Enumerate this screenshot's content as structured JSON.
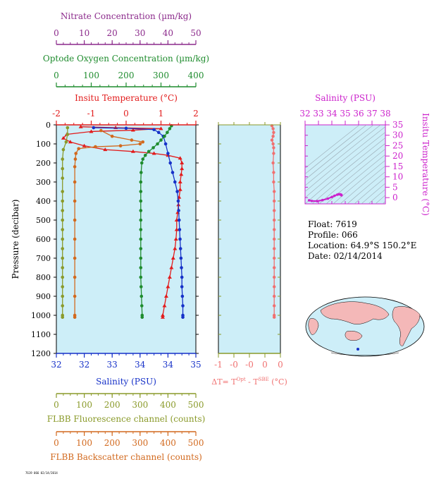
{
  "colors": {
    "nitrate": "#8b2a8b",
    "oxygen": "#1f8c2e",
    "temperature": "#e21b1b",
    "salinity": "#1631c8",
    "fluorescence": "#8a9a2a",
    "backscatter": "#d2691e",
    "delta_t": "#f07070",
    "ts_axes": "#cc22cc",
    "plot_bg": "#cdeef8",
    "axis": "#000000"
  },
  "info": {
    "float": "Float:  7619",
    "profile": "Profile:  066",
    "location": "Location:  64.9°S  150.2°E",
    "date": "Date:  02/14/2014"
  },
  "footer": "7619 066 02/14/2014",
  "chart_data": [
    {
      "type": "line",
      "name": "main-profile",
      "ylabel": "Pressure (decibar)",
      "ylim": [
        1200,
        0
      ],
      "yticks": [
        "0",
        "100",
        "200",
        "300",
        "400",
        "500",
        "600",
        "700",
        "800",
        "900",
        "1000",
        "1100",
        "1200"
      ],
      "axes": {
        "nitrate": {
          "label": "Nitrate Concentration (µm/kg)",
          "range": [
            0,
            50
          ],
          "ticks": [
            "0",
            "10",
            "20",
            "30",
            "40",
            "50"
          ]
        },
        "oxygen": {
          "label": "Optode Oxygen Concentration (µm/kg)",
          "range": [
            0,
            400
          ],
          "ticks": [
            "0",
            "100",
            "200",
            "300",
            "400"
          ]
        },
        "temperature": {
          "label": "Insitu Temperature (°C)",
          "range": [
            -2,
            2
          ],
          "ticks": [
            "-2",
            "-1",
            "0",
            "1",
            "2"
          ]
        },
        "salinity": {
          "label": "Salinity (PSU)",
          "range": [
            32,
            35
          ],
          "ticks": [
            "32",
            "32",
            "33",
            "34",
            "34",
            "35"
          ]
        },
        "fluorescence": {
          "label": "FLBB Fluorescence channel (counts)",
          "range": [
            0,
            500
          ],
          "ticks": [
            "0",
            "100",
            "200",
            "300",
            "400",
            "500"
          ]
        },
        "backscatter": {
          "label": "FLBB Backscatter channel (counts)",
          "range": [
            0,
            500
          ],
          "ticks": [
            "0",
            "100",
            "200",
            "300",
            "400",
            "500"
          ]
        }
      },
      "series": [
        {
          "key": "temperature",
          "points": [
            [
              -1.3,
              10
            ],
            [
              -0.3,
              15
            ],
            [
              1.0,
              20
            ],
            [
              0.2,
              28
            ],
            [
              -1.0,
              35
            ],
            [
              -1.7,
              50
            ],
            [
              -1.8,
              70
            ],
            [
              -1.6,
              90
            ],
            [
              -1.2,
              110
            ],
            [
              -0.6,
              130
            ],
            [
              0.2,
              140
            ],
            [
              0.8,
              150
            ],
            [
              1.2,
              160
            ],
            [
              1.55,
              175
            ],
            [
              1.6,
              200
            ],
            [
              1.6,
              230
            ],
            [
              1.58,
              260
            ],
            [
              1.55,
              300
            ],
            [
              1.55,
              340
            ],
            [
              1.52,
              380
            ],
            [
              1.5,
              420
            ],
            [
              1.48,
              460
            ],
            [
              1.45,
              500
            ],
            [
              1.45,
              550
            ],
            [
              1.43,
              600
            ],
            [
              1.4,
              650
            ],
            [
              1.35,
              700
            ],
            [
              1.3,
              750
            ],
            [
              1.25,
              800
            ],
            [
              1.2,
              850
            ],
            [
              1.15,
              900
            ],
            [
              1.1,
              950
            ],
            [
              1.05,
              1000
            ],
            [
              1.05,
              1010
            ]
          ]
        },
        {
          "key": "salinity",
          "points": [
            [
              32.8,
              15
            ],
            [
              33.5,
              18
            ],
            [
              34.1,
              25
            ],
            [
              34.2,
              40
            ],
            [
              34.3,
              60
            ],
            [
              34.35,
              100
            ],
            [
              34.4,
              150
            ],
            [
              34.45,
              200
            ],
            [
              34.5,
              250
            ],
            [
              34.55,
              300
            ],
            [
              34.6,
              350
            ],
            [
              34.62,
              400
            ],
            [
              34.63,
              450
            ],
            [
              34.64,
              500
            ],
            [
              34.65,
              550
            ],
            [
              34.66,
              600
            ],
            [
              34.67,
              650
            ],
            [
              34.68,
              700
            ],
            [
              34.69,
              750
            ],
            [
              34.7,
              800
            ],
            [
              34.7,
              850
            ],
            [
              34.71,
              900
            ],
            [
              34.72,
              950
            ],
            [
              34.72,
              1000
            ],
            [
              34.72,
              1010
            ]
          ]
        },
        {
          "key": "oxygen",
          "points": [
            [
              330,
              5
            ],
            [
              325,
              20
            ],
            [
              318,
              40
            ],
            [
              310,
              60
            ],
            [
              300,
              80
            ],
            [
              290,
              100
            ],
            [
              278,
              120
            ],
            [
              265,
              140
            ],
            [
              255,
              160
            ],
            [
              248,
              180
            ],
            [
              245,
              200
            ],
            [
              243,
              250
            ],
            [
              242,
              300
            ],
            [
              242,
              350
            ],
            [
              242,
              400
            ],
            [
              242,
              450
            ],
            [
              242,
              500
            ],
            [
              242,
              550
            ],
            [
              242,
              600
            ],
            [
              242,
              650
            ],
            [
              242,
              700
            ],
            [
              242,
              750
            ],
            [
              242,
              800
            ],
            [
              243,
              850
            ],
            [
              244,
              900
            ],
            [
              245,
              950
            ],
            [
              246,
              1000
            ],
            [
              246,
              1010
            ]
          ]
        },
        {
          "key": "fluorescence",
          "points": [
            [
              40,
              15
            ],
            [
              40,
              50
            ],
            [
              35,
              90
            ],
            [
              25,
              130
            ],
            [
              22,
              180
            ],
            [
              22,
              230
            ],
            [
              22,
              280
            ],
            [
              22,
              350
            ],
            [
              22,
              400
            ],
            [
              22,
              450
            ],
            [
              22,
              500
            ],
            [
              22,
              550
            ],
            [
              22,
              600
            ],
            [
              22,
              650
            ],
            [
              22,
              700
            ],
            [
              22,
              750
            ],
            [
              22,
              800
            ],
            [
              22,
              850
            ],
            [
              22,
              900
            ],
            [
              22,
              950
            ],
            [
              22,
              1000
            ],
            [
              22,
              1010
            ]
          ]
        },
        {
          "key": "backscatter",
          "points": [
            [
              160,
              30
            ],
            [
              200,
              60
            ],
            [
              270,
              80
            ],
            [
              310,
              90
            ],
            [
              300,
              100
            ],
            [
              230,
              110
            ],
            [
              140,
              115
            ],
            [
              80,
              125
            ],
            [
              70,
              150
            ],
            [
              68,
              180
            ],
            [
              66,
              220
            ],
            [
              66,
              300
            ],
            [
              66,
              400
            ],
            [
              66,
              500
            ],
            [
              66,
              600
            ],
            [
              66,
              700
            ],
            [
              66,
              800
            ],
            [
              66,
              900
            ],
            [
              66,
              1000
            ],
            [
              66,
              1010
            ]
          ]
        }
      ]
    },
    {
      "type": "line",
      "name": "delta-t",
      "xlabel": "ΔT= T^Opt - T^SBE (°C)",
      "xlabel_main": "ΔT= T",
      "xlabel_sup1": "Opt",
      "xlabel_mid": " - T",
      "xlabel_sup2": "SBE",
      "xlabel_end": " (°C)",
      "xlim": [
        -1,
        0.1
      ],
      "xticks": [
        "-1",
        "-0",
        "-0",
        "0",
        "0"
      ],
      "series": [
        {
          "key": "delta_t",
          "points": [
            [
              -0.05,
              5
            ],
            [
              -0.03,
              20
            ],
            [
              -0.02,
              40
            ],
            [
              -0.03,
              60
            ],
            [
              -0.05,
              80
            ],
            [
              -0.03,
              100
            ],
            [
              -0.02,
              120
            ],
            [
              -0.02,
              150
            ],
            [
              -0.03,
              200
            ],
            [
              -0.02,
              250
            ],
            [
              -0.02,
              300
            ],
            [
              -0.01,
              350
            ],
            [
              -0.01,
              400
            ],
            [
              -0.01,
              450
            ],
            [
              -0.01,
              500
            ],
            [
              -0.01,
              550
            ],
            [
              -0.01,
              600
            ],
            [
              -0.01,
              650
            ],
            [
              -0.01,
              700
            ],
            [
              -0.01,
              750
            ],
            [
              -0.01,
              800
            ],
            [
              -0.01,
              850
            ],
            [
              -0.01,
              900
            ],
            [
              -0.01,
              950
            ],
            [
              -0.01,
              1000
            ],
            [
              -0.01,
              1010
            ]
          ]
        }
      ]
    },
    {
      "type": "scatter",
      "name": "ts-diagram",
      "xlabel": "Salinity (PSU)",
      "ylabel": "Insitu Temperature (°C)",
      "xlim": [
        32,
        38
      ],
      "ylim": [
        -3,
        35
      ],
      "xticks": [
        "32",
        "33",
        "34",
        "35",
        "36",
        "37",
        "38"
      ],
      "yticks": [
        "35",
        "30",
        "25",
        "20",
        "15",
        "10",
        "5",
        "0"
      ],
      "points": [
        [
          32.3,
          -1.3
        ],
        [
          32.5,
          -1.6
        ],
        [
          32.9,
          -1.7
        ],
        [
          33.3,
          -1.2
        ],
        [
          33.7,
          -0.5
        ],
        [
          34.0,
          0.3
        ],
        [
          34.2,
          0.9
        ],
        [
          34.4,
          1.4
        ],
        [
          34.5,
          1.6
        ],
        [
          34.6,
          1.6
        ],
        [
          34.65,
          1.5
        ],
        [
          34.7,
          1.4
        ],
        [
          34.72,
          1.2
        ],
        [
          34.72,
          1.1
        ]
      ]
    }
  ]
}
